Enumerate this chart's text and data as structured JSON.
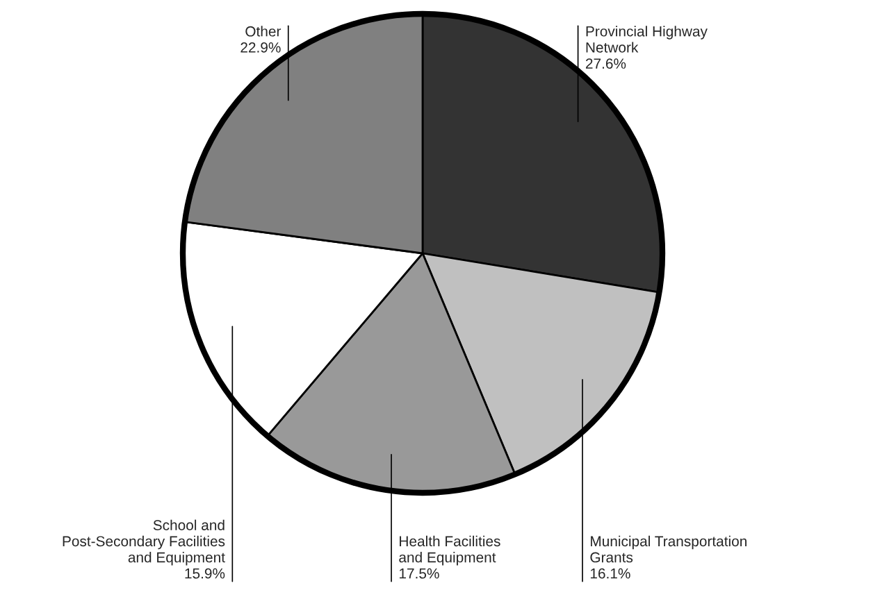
{
  "chart_data": {
    "type": "pie",
    "categories": [
      "Provincial Highway\nNetwork",
      "Municipal Transportation\nGrants",
      "Health Facilities\nand Equipment",
      "School and\nPost-Secondary Facilities\nand Equipment",
      "Other"
    ],
    "values": [
      27.6,
      16.1,
      17.5,
      15.9,
      22.9
    ],
    "colors": [
      "#333333",
      "#c0c0c0",
      "#999999",
      "#ffffff",
      "#808080"
    ],
    "value_labels": [
      "27.6%",
      "16.1%",
      "17.5%",
      "15.9%",
      "22.9%"
    ]
  }
}
